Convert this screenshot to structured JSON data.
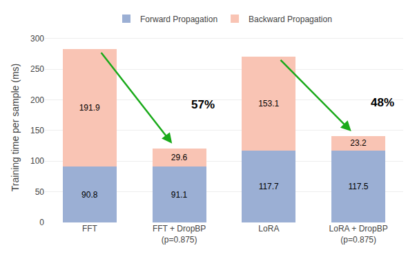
{
  "chart_data": {
    "type": "bar",
    "stacked": true,
    "categories": [
      "FFT",
      "FFT + DropBP\n(p=0.875)",
      "LoRA",
      "LoRA + DropBP\n(p=0.875)"
    ],
    "series": [
      {
        "name": "Forward Propagation",
        "color": "#9BAFD4",
        "values": [
          90.8,
          91.1,
          117.7,
          117.5
        ]
      },
      {
        "name": "Backward Propagation",
        "color": "#F9C4B4",
        "values": [
          191.9,
          29.6,
          153.1,
          23.2
        ]
      }
    ],
    "ylabel": "Training time per sample (ms)",
    "ylim": [
      0,
      310
    ],
    "yticks": [
      0,
      50,
      100,
      150,
      200,
      250,
      300
    ],
    "grid": true,
    "data_labels": true,
    "legend": "top",
    "annotations": [
      {
        "text": "57%",
        "color": "#1aaa1a"
      },
      {
        "text": "48%",
        "color": "#1aaa1a"
      }
    ]
  }
}
